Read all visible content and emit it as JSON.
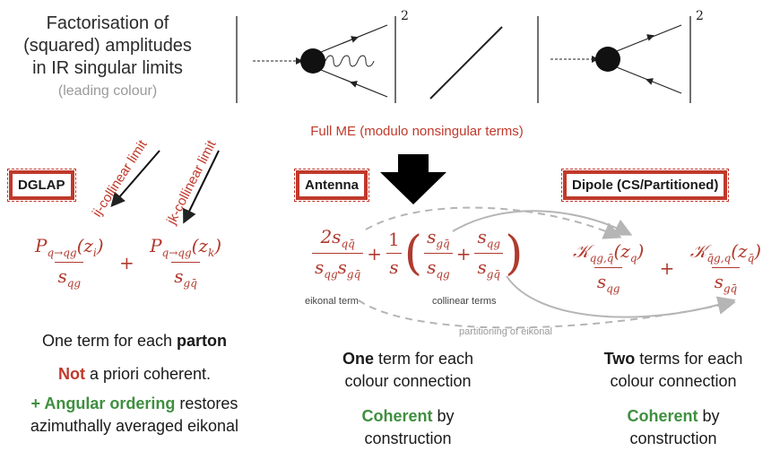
{
  "title": {
    "line1": "Factorisation of",
    "line2": "(squared) amplitudes",
    "line3": "in IR singular limits",
    "note": "(leading colour)"
  },
  "diagram_exponents": [
    "2",
    "2"
  ],
  "full_me": "Full ME (modulo nonsingular terms)",
  "boxes": {
    "dglap": "DGLAP",
    "antenna": "Antenna",
    "dipole": "Dipole (CS/Partitioned)"
  },
  "limits": {
    "ij": "ij-collinear limit",
    "jk": "jk-collinear limit"
  },
  "dglap_formula": {
    "num1": "P",
    "sub1": "q→qg",
    "arg1": "(z",
    "arg1_sub": "i",
    "den1": "s",
    "den1_sub": "qg",
    "plus": "+",
    "num2": "P",
    "sub2": "q→qg",
    "arg2": "(z",
    "arg2_sub": "k",
    "den2": "s",
    "den2_sub": "gq̄"
  },
  "antenna_formula": {
    "num": "2s",
    "num_sub": "qq̄",
    "den_a": "s",
    "den_a_sub": "qg",
    "den_b": "s",
    "den_b_sub": "gq̄",
    "plus": "+",
    "one": "1",
    "s": "s",
    "f1_num": "s",
    "f1_num_sub": "gq̄",
    "f1_den": "s",
    "f1_den_sub": "qg",
    "f2_num": "s",
    "f2_num_sub": "qg",
    "f2_den": "s",
    "f2_den_sub": "gq̄",
    "eikonal_label": "eikonal term",
    "collinear_label": "collinear terms",
    "partition_label": "partitioning of eikonal"
  },
  "dipole_formula": {
    "num1": "𝒦",
    "num1_sub": "qg,q̄",
    "arg1": "(z",
    "arg1_sub": "q",
    "den1": "s",
    "den1_sub": "qg",
    "plus": "+",
    "num2": "𝒦",
    "num2_sub": "q̄g,q",
    "arg2": "(z",
    "arg2_sub": "q̄",
    "den2": "s",
    "den2_sub": "gq̄"
  },
  "dglap_text": {
    "line1_a": "One term for each ",
    "line1_b": "parton",
    "line2_a": "Not",
    "line2_b": " a priori coherent.",
    "line3_a": "+ Angular ordering",
    "line3_b": " restores",
    "line4": "azimuthally averaged eikonal"
  },
  "antenna_text": {
    "line1_a": "One",
    "line1_b": " term for each",
    "line2": "colour connection",
    "line3_a": "Coherent",
    "line3_b": " by",
    "line4": "construction"
  },
  "dipole_text": {
    "line1_a": "Two",
    "line1_b": " terms for each",
    "line2": "colour connection",
    "line3_a": "Coherent",
    "line3_b": " by",
    "line4": "construction"
  },
  "colors": {
    "accent_red": "#c0392b",
    "formula_red": "#b03a2e",
    "coherent_green": "#3f8f3f",
    "arrow_grey": "#b5b5b5"
  }
}
